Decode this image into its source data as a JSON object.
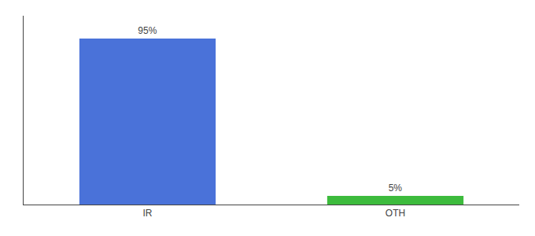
{
  "chart_data": {
    "type": "bar",
    "categories": [
      "IR",
      "OTH"
    ],
    "values": [
      95,
      5
    ],
    "value_labels": [
      "95%",
      "5%"
    ],
    "colors": [
      "#4a72d9",
      "#3dbb3d"
    ],
    "ylim": [
      0,
      108
    ],
    "grid": false,
    "data_labels": true,
    "tick_labels": "x"
  }
}
